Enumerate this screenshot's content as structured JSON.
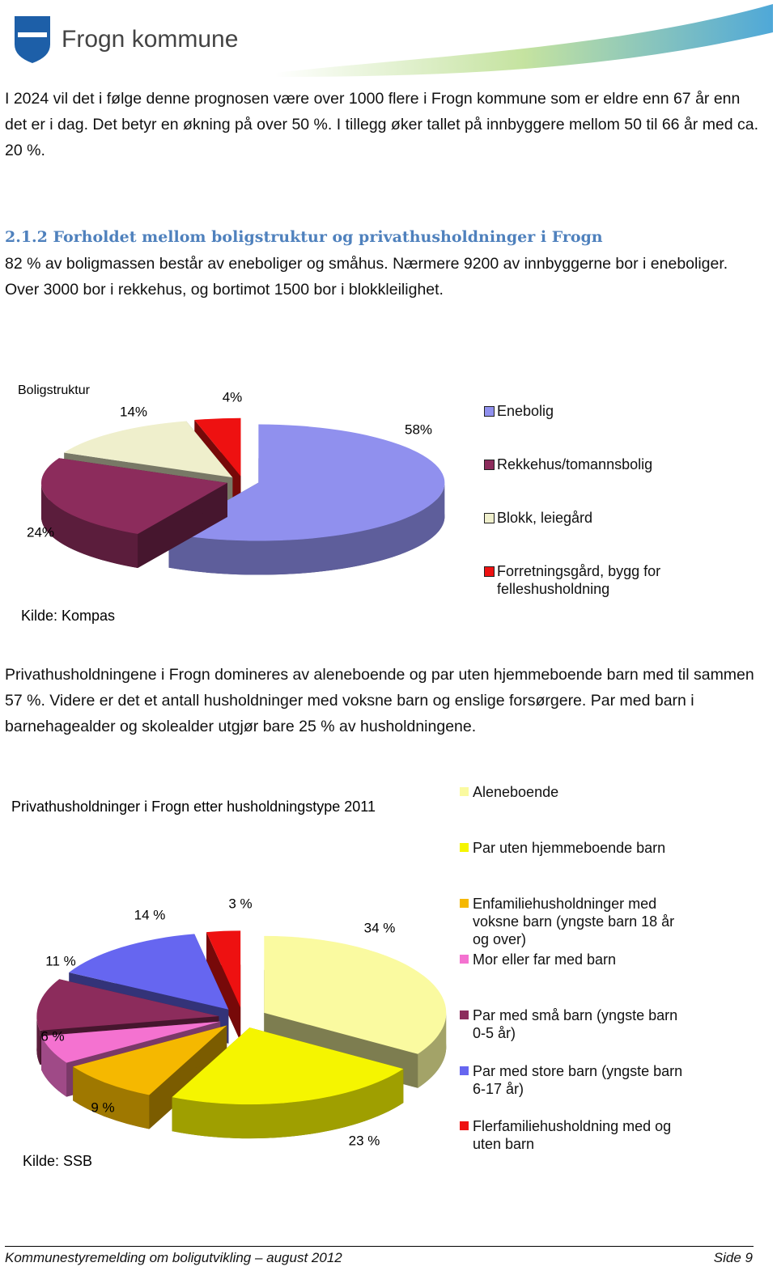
{
  "header": {
    "logo_text": "Frogn kommune"
  },
  "intro": "I 2024 vil det i følge denne prognosen være over 1000 flere i Frogn kommune som er eldre enn 67 år enn det er i dag. Det betyr en økning på over 50 %. I tillegg øker tallet på innbyggere mellom 50 til 66 år med ca. 20 %.",
  "section": {
    "heading": "2.1.2 Forholdet mellom boligstruktur og privathusholdninger i Frogn",
    "text": "82 % av boligmassen består av eneboliger og småhus. Nærmere 9200 av innbyggerne bor i eneboliger. Over 3000 bor i rekkehus, og bortimot 1500 bor i blokkleilighet."
  },
  "paragraph_2": "Privathusholdningene i Frogn domineres av aleneboende og par uten hjemmeboende barn med til sammen 57 %. Videre er det et antall husholdninger med voksne barn og enslige forsørgere. Par med barn i barnehagealder og skolealder utgjør bare 25 % av husholdningene.",
  "chart_data": [
    {
      "type": "pie",
      "title": "Boligstruktur",
      "source": "Kilde: Kompas",
      "categories": [
        "Enebolig",
        "Rekkehus/tomannsbolig",
        "Blokk, leiegård",
        "Forretningsgård, bygg for felleshusholdning"
      ],
      "values": [
        58,
        24,
        14,
        4
      ],
      "value_labels": [
        "58%",
        "24%",
        "14%",
        "4%"
      ],
      "colors": [
        "#9090ee",
        "#8c2c5c",
        "#efefcc",
        "#ee1111"
      ],
      "legend": "right"
    },
    {
      "type": "pie",
      "title": "Privathusholdninger i Frogn etter husholdningstype 2011",
      "source": "Kilde: SSB",
      "categories": [
        "Aleneboende",
        "Par uten hjemmeboende barn",
        "Enfamiliehusholdninger med voksne barn (yngste barn 18 år og over)",
        "Mor eller far med barn",
        "Par med små barn (yngste barn 0-5 år)",
        "Par med store barn (yngste barn 6-17 år)",
        "Flerfamiliehusholdning med og uten barn"
      ],
      "values": [
        34,
        23,
        9,
        6,
        11,
        14,
        3
      ],
      "value_labels": [
        "34 %",
        "23 %",
        "9 %",
        "6 %",
        "11 %",
        "14 %",
        "3 %"
      ],
      "colors": [
        "#fafaa0",
        "#f5f500",
        "#f5b800",
        "#f472d0",
        "#8c2c5c",
        "#6666f0",
        "#ee1111"
      ],
      "legend": "right"
    }
  ],
  "footer": {
    "left": "Kommunestyremelding om boligutvikling – august 2012",
    "right": "Side 9"
  }
}
